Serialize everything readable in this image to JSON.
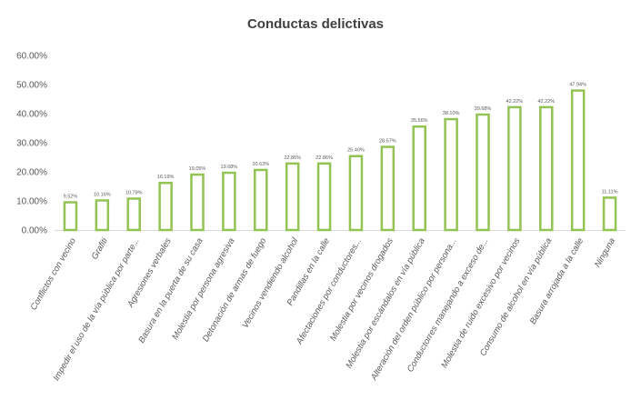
{
  "chart_data": {
    "type": "bar",
    "title": "Conductas delictivas",
    "xlabel": "",
    "ylabel": "",
    "ylim": [
      0,
      60
    ],
    "yticks": [
      "0.00%",
      "10.00%",
      "20.00%",
      "30.00%",
      "40.00%",
      "50.00%",
      "60.00%"
    ],
    "grid": false,
    "legend": "none",
    "bar_color": "#92c353",
    "categories": [
      "Conflictos con vecino",
      "Grafiti",
      "Impedir el uso de la vía pública por parte...",
      "Agresiones verbales",
      "Basura en la puerta de su casa",
      "Molestia por persona agresiva",
      "Detonación de armas de fuego",
      "Vecinos vendiendo alcohol",
      "Pandillas en la calle",
      "Afectaciones por conductores...",
      "Molestia por vecinos drogados",
      "Molestia por escándalos en vía pública",
      "Alteración del orden público por persona...",
      "Conductorres manejando a exceso de...",
      "Molestia de ruido excesivo por vecinos",
      "Consumo de alcohol en vía pública",
      "Basura arrojada a la calle",
      "Ninguna"
    ],
    "values": [
      9.52,
      10.16,
      10.79,
      16.19,
      19.05,
      19.68,
      20.63,
      22.86,
      22.86,
      25.4,
      28.57,
      35.56,
      38.1,
      39.68,
      42.22,
      42.22,
      47.94,
      11.11
    ],
    "data_labels": [
      "9.52%",
      "10.16%",
      "10.79%",
      "16.19%",
      "19.05%",
      "19.68%",
      "20.63%",
      "22.86%",
      "22.86%",
      "25.40%",
      "28.57%",
      "35.56%",
      "38.10%",
      "39.68%",
      "42.22%",
      "42.22%",
      "47.94%",
      "11.11%"
    ]
  }
}
